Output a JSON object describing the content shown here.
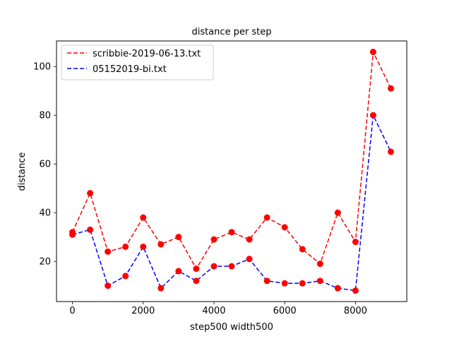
{
  "chart_data": {
    "type": "line",
    "title": "distance per step",
    "xlabel": "step500 width500",
    "ylabel": "distance",
    "xlim": [
      -450,
      9450
    ],
    "ylim": [
      3.5,
      110.5
    ],
    "xticks": [
      0,
      2000,
      4000,
      6000,
      8000
    ],
    "yticks": [
      20,
      40,
      60,
      80,
      100
    ],
    "grid": false,
    "legend_position": "top-left",
    "x": [
      0,
      500,
      1000,
      1500,
      2000,
      2500,
      3000,
      3500,
      4000,
      4500,
      5000,
      5500,
      6000,
      6500,
      7000,
      7500,
      8000,
      8500,
      9000
    ],
    "series": [
      {
        "name": "scribbie-2019-06-13.txt",
        "line_color": "#ff0000",
        "marker_color": "#ff0000",
        "values": [
          32,
          48,
          24,
          26,
          38,
          27,
          30,
          17,
          29,
          32,
          29,
          38,
          34,
          25,
          19,
          40,
          28,
          106,
          91
        ]
      },
      {
        "name": "05152019-bi.txt",
        "line_color": "#0000ff",
        "marker_color": "#ff0000",
        "values": [
          31,
          33,
          10,
          14,
          26,
          9,
          16,
          12,
          18,
          18,
          21,
          12,
          11,
          11,
          12,
          9,
          8,
          80,
          65
        ]
      }
    ]
  }
}
